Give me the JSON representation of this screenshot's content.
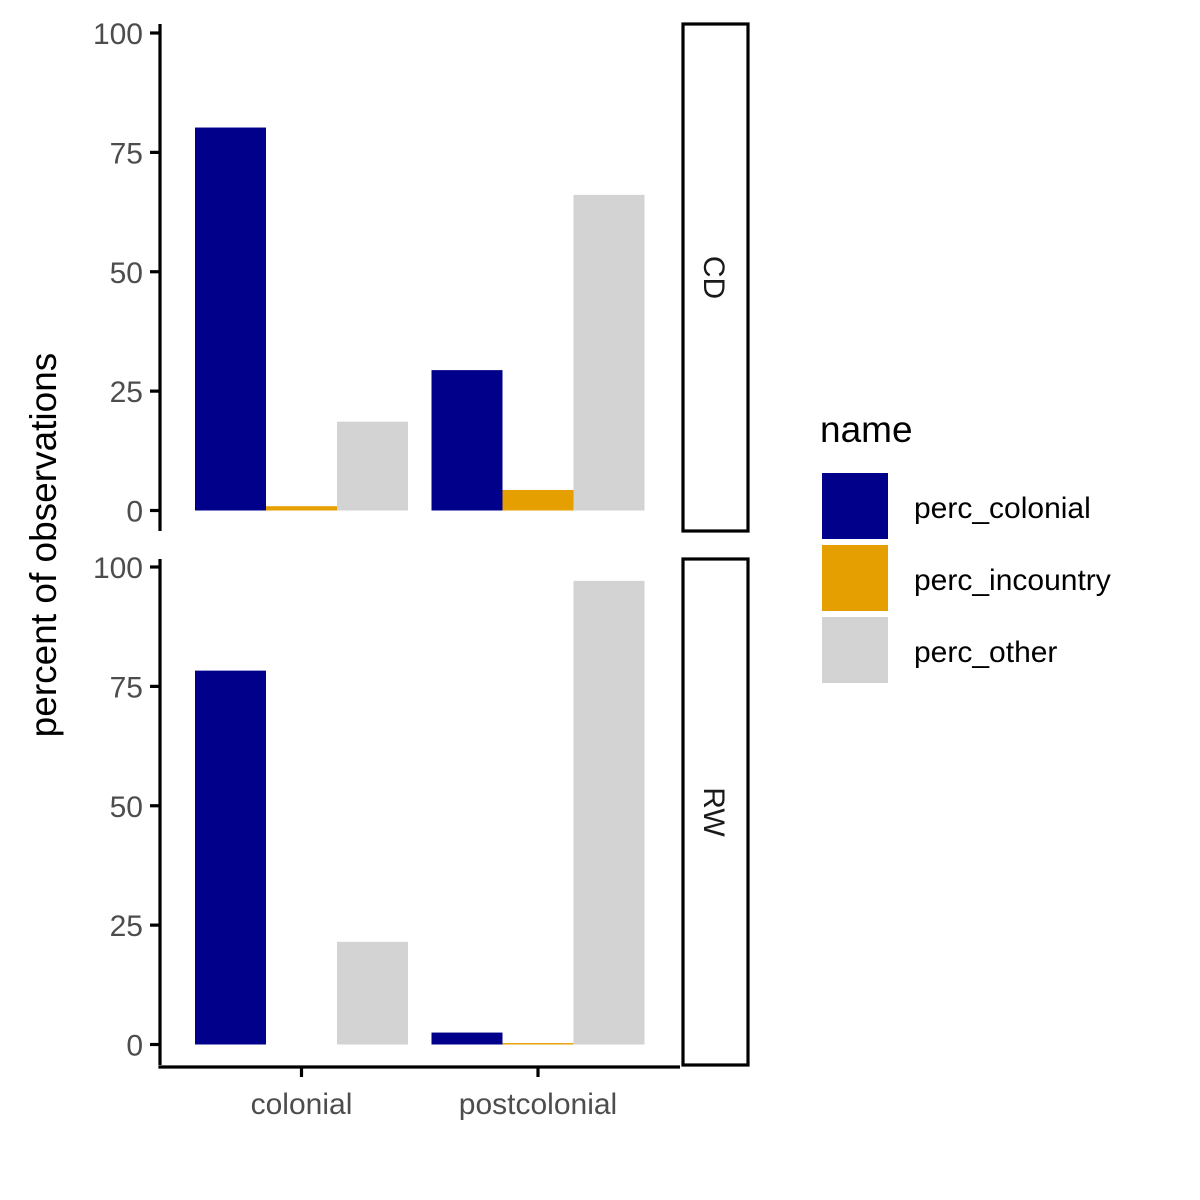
{
  "chart_data": {
    "type": "bar",
    "ylabel": "percent of observations",
    "xlabel": "",
    "ylim": [
      0,
      100
    ],
    "yticks": [
      "0",
      "25",
      "50",
      "75",
      "100"
    ],
    "categories": [
      "colonial",
      "postcolonial"
    ],
    "legend": {
      "title": "name",
      "position": "right",
      "items": [
        {
          "label": "perc_colonial",
          "color": "#00008B"
        },
        {
          "label": "perc_incountry",
          "color": "#E69F00"
        },
        {
          "label": "perc_other",
          "color": "#D3D3D3"
        }
      ]
    },
    "facets": [
      {
        "label": "CD",
        "series": [
          {
            "name": "perc_colonial",
            "values": [
              80.2,
              29.4
            ]
          },
          {
            "name": "perc_incountry",
            "values": [
              0.9,
              4.3
            ]
          },
          {
            "name": "perc_other",
            "values": [
              18.6,
              66.1
            ]
          }
        ]
      },
      {
        "label": "RW",
        "series": [
          {
            "name": "perc_colonial",
            "values": [
              78.3,
              2.5
            ]
          },
          {
            "name": "perc_incountry",
            "values": [
              0.0,
              0.3
            ]
          },
          {
            "name": "perc_other",
            "values": [
              21.5,
              97.1
            ]
          }
        ]
      }
    ]
  }
}
